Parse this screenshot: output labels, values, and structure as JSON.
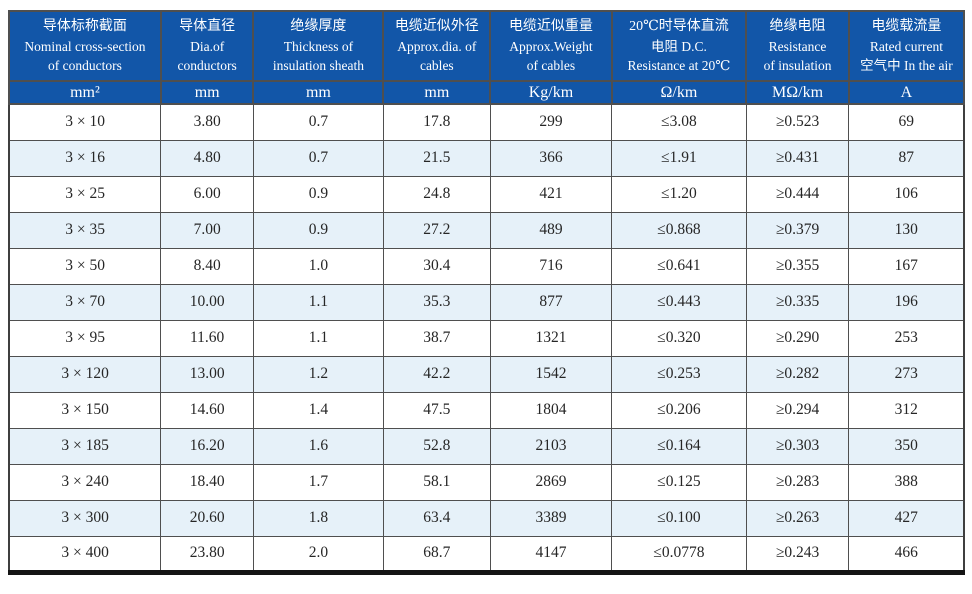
{
  "colors": {
    "header_bg": "#1256a8",
    "header_text": "#ffffff",
    "row_alt_bg": "#e6f1f9",
    "grid_line": "#4f4f4f",
    "outer_line": "#3f3f3f",
    "bottom_line": "#141414",
    "text": "#262626"
  },
  "table": {
    "columns": [
      {
        "zh": "导体标称截面",
        "en1": "Nominal cross-section",
        "en2": "of conductors",
        "unit": "mm²"
      },
      {
        "zh": "导体直径",
        "en1": "Dia.of",
        "en2": "conductors",
        "unit": "mm"
      },
      {
        "zh": "绝缘厚度",
        "en1": "Thickness of",
        "en2": "insulation sheath",
        "unit": "mm"
      },
      {
        "zh": "电缆近似外径",
        "en1": "Approx.dia. of",
        "en2": "cables",
        "unit": "mm"
      },
      {
        "zh": "电缆近似重量",
        "en1": "Approx.Weight",
        "en2": "of cables",
        "unit": "Kg/km"
      },
      {
        "zh": "20℃时导体直流",
        "en1": "电阻 D.C.",
        "en2": "Resistance at 20℃",
        "unit": "Ω/km"
      },
      {
        "zh": "绝缘电阻",
        "en1": "Resistance",
        "en2": "of insulation",
        "unit": "MΩ/km"
      },
      {
        "zh": "电缆载流量",
        "en1": "Rated current",
        "en2": "空气中 In the air",
        "unit": "A"
      }
    ],
    "rows": [
      [
        "3 × 10",
        "3.80",
        "0.7",
        "17.8",
        "299",
        "≤3.08",
        "≥0.523",
        "69"
      ],
      [
        "3 × 16",
        "4.80",
        "0.7",
        "21.5",
        "366",
        "≤1.91",
        "≥0.431",
        "87"
      ],
      [
        "3 × 25",
        "6.00",
        "0.9",
        "24.8",
        "421",
        "≤1.20",
        "≥0.444",
        "106"
      ],
      [
        "3 × 35",
        "7.00",
        "0.9",
        "27.2",
        "489",
        "≤0.868",
        "≥0.379",
        "130"
      ],
      [
        "3 × 50",
        "8.40",
        "1.0",
        "30.4",
        "716",
        "≤0.641",
        "≥0.355",
        "167"
      ],
      [
        "3 × 70",
        "10.00",
        "1.1",
        "35.3",
        "877",
        "≤0.443",
        "≥0.335",
        "196"
      ],
      [
        "3 × 95",
        "11.60",
        "1.1",
        "38.7",
        "1321",
        "≤0.320",
        "≥0.290",
        "253"
      ],
      [
        "3 × 120",
        "13.00",
        "1.2",
        "42.2",
        "1542",
        "≤0.253",
        "≥0.282",
        "273"
      ],
      [
        "3 × 150",
        "14.60",
        "1.4",
        "47.5",
        "1804",
        "≤0.206",
        "≥0.294",
        "312"
      ],
      [
        "3 × 185",
        "16.20",
        "1.6",
        "52.8",
        "2103",
        "≤0.164",
        "≥0.303",
        "350"
      ],
      [
        "3 × 240",
        "18.40",
        "1.7",
        "58.1",
        "2869",
        "≤0.125",
        "≥0.283",
        "388"
      ],
      [
        "3 × 300",
        "20.60",
        "1.8",
        "63.4",
        "3389",
        "≤0.100",
        "≥0.263",
        "427"
      ],
      [
        "3 × 400",
        "23.80",
        "2.0",
        "68.7",
        "4147",
        "≤0.0778",
        "≥0.243",
        "466"
      ]
    ]
  }
}
